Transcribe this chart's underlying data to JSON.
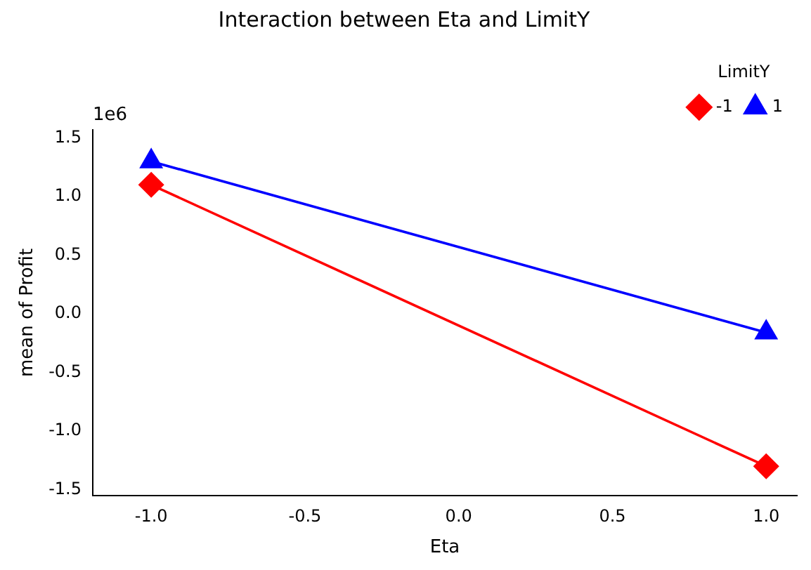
{
  "chart_data": {
    "type": "line",
    "title": "Interaction between Eta and LimitY",
    "xlabel": "Eta",
    "ylabel": "mean of Profit",
    "legend_title": "LimitY",
    "legend": "top right",
    "grid": false,
    "x": [
      -1,
      1
    ],
    "series": [
      {
        "name": "-1",
        "color": "#ff0000",
        "values": [
          1.1,
          -1.3
        ],
        "marker": "diamond"
      },
      {
        "name": "1",
        "color": "#0000ff",
        "values": [
          1.3,
          -0.16
        ],
        "marker": "triangle"
      }
    ],
    "xlim": [
      -1.19,
      1.1
    ],
    "xticks": [
      {
        "value": -1,
        "label": "-1.0"
      },
      {
        "value": -0.5,
        "label": "-0.5"
      },
      {
        "value": 0,
        "label": "0.0"
      },
      {
        "value": 0.5,
        "label": "0.5"
      },
      {
        "value": 1,
        "label": "1.0"
      }
    ],
    "ylim": [
      -1.55,
      1.57
    ],
    "yticks": [
      {
        "value": -1.5,
        "label": "-1.5"
      },
      {
        "value": -1,
        "label": "-1.0"
      },
      {
        "value": -0.5,
        "label": "-0.5"
      },
      {
        "value": 0,
        "label": "0.0"
      },
      {
        "value": 0.5,
        "label": "0.5"
      },
      {
        "value": 1,
        "label": "1.0"
      },
      {
        "value": 1.5,
        "label": "1.5"
      }
    ],
    "annotations": [
      "1e6"
    ]
  }
}
